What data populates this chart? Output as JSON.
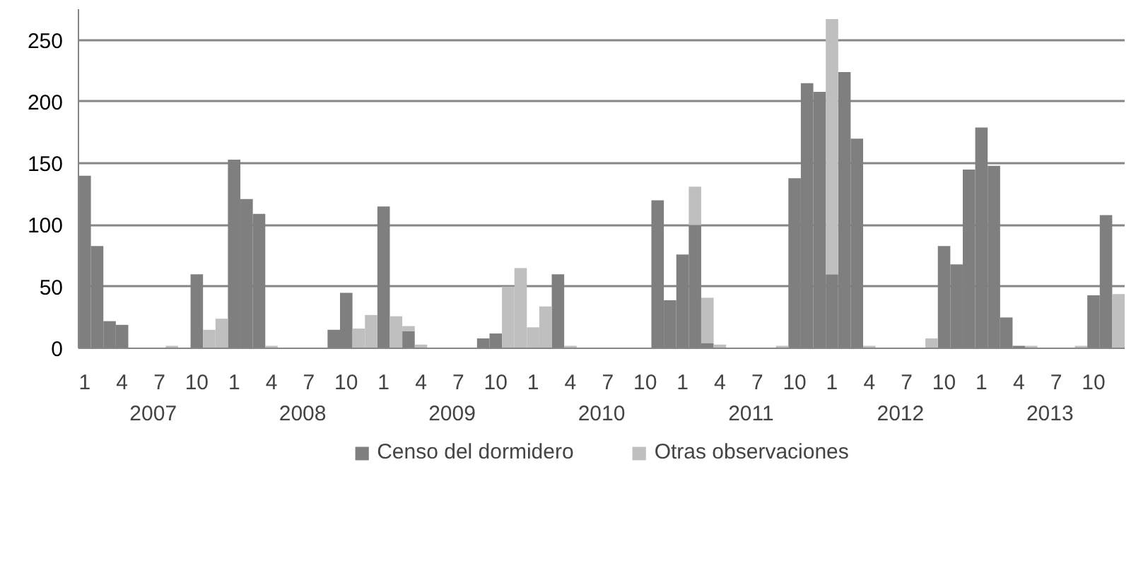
{
  "chart_data": {
    "type": "bar",
    "stacked": true,
    "categories": [
      "1",
      null,
      null,
      "4",
      null,
      null,
      "7",
      null,
      null,
      "10",
      null,
      null,
      "1",
      null,
      null,
      "4",
      null,
      null,
      "7",
      null,
      null,
      "10",
      null,
      null,
      "1",
      null,
      null,
      "4",
      null,
      null,
      "7",
      null,
      null,
      "10",
      null,
      null,
      "1",
      null,
      null,
      "4",
      null,
      null,
      "7",
      null,
      null,
      "10",
      null,
      null,
      "1",
      null,
      null,
      "4",
      null,
      null,
      "7",
      null,
      null,
      "10",
      null,
      null,
      "1",
      null,
      null,
      "4",
      null,
      null,
      "7",
      null,
      null,
      "10",
      null,
      null,
      "1",
      null,
      null,
      "4",
      null,
      null,
      "7",
      null,
      null,
      "10",
      null,
      null
    ],
    "annotations": [
      "2007",
      "2008",
      "2009",
      "2010",
      "2011",
      "2012",
      "2013"
    ],
    "series": [
      {
        "name": "Censo del dormidero",
        "color": "#7f7f7f",
        "values": [
          140,
          83,
          22,
          19,
          0,
          0,
          0,
          0,
          0,
          60,
          0,
          0,
          153,
          121,
          109,
          0,
          0,
          0,
          0,
          0,
          15,
          45,
          0,
          0,
          115,
          0,
          14,
          0,
          0,
          0,
          0,
          0,
          8,
          12,
          0,
          0,
          0,
          0,
          60,
          0,
          0,
          0,
          0,
          0,
          0,
          0,
          120,
          39,
          76,
          100,
          4,
          0,
          0,
          0,
          0,
          0,
          0,
          138,
          215,
          208,
          60,
          224,
          170,
          0,
          0,
          0,
          0,
          0,
          0,
          83,
          68,
          145,
          179,
          148,
          25,
          2,
          0,
          0,
          0,
          0,
          0,
          43,
          108,
          0
        ]
      },
      {
        "name": "Otras observaciones",
        "color": "#bfbfbf",
        "values": [
          0,
          0,
          0,
          0,
          0,
          0,
          0,
          2,
          0,
          0,
          15,
          24,
          0,
          0,
          0,
          2,
          0,
          0,
          0,
          0,
          0,
          0,
          16,
          27,
          0,
          26,
          4,
          3,
          0,
          0,
          0,
          0,
          0,
          0,
          50,
          65,
          17,
          34,
          0,
          2,
          0,
          0,
          0,
          0,
          0,
          0,
          0,
          0,
          0,
          31,
          37,
          3,
          0,
          0,
          0,
          0,
          2,
          0,
          0,
          0,
          207,
          0,
          0,
          2,
          0,
          0,
          0,
          0,
          8,
          0,
          0,
          0,
          0,
          0,
          0,
          0,
          2,
          0,
          0,
          0,
          2,
          0,
          0,
          44
        ]
      }
    ],
    "ylim": [
      0,
      275
    ],
    "yticks": [
      0,
      50,
      100,
      150,
      200,
      250
    ],
    "grid": "y",
    "legend": "bottom"
  }
}
